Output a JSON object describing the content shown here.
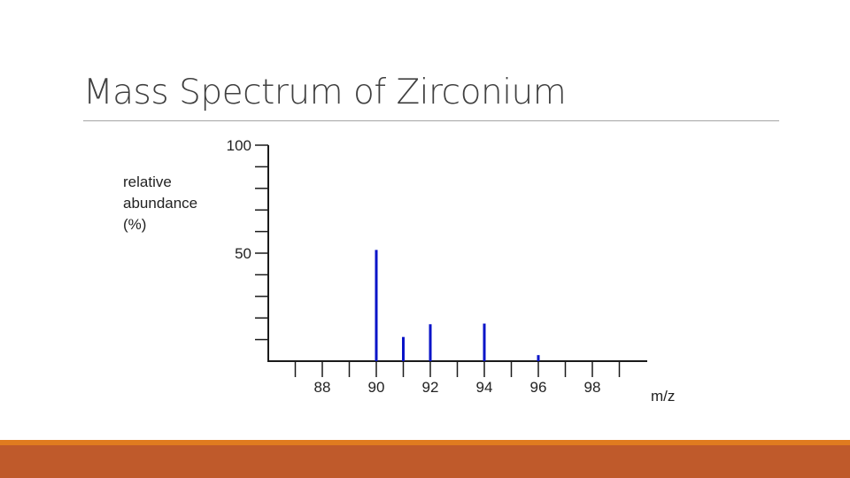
{
  "slide": {
    "title": "Mass Spectrum of Zirconium"
  },
  "colors": {
    "bar": "#0a14c8",
    "axis": "#1a1a1a",
    "band_top": "#e07b1f",
    "band_bottom": "#bf5a2b",
    "rule": "#a6a6a6"
  },
  "chart_data": {
    "type": "bar",
    "title": "",
    "ylabel_lines": [
      "relative",
      "abundance",
      "(%)"
    ],
    "xlabel": "m/z",
    "ylim": [
      0,
      100
    ],
    "xlim": [
      86,
      100
    ],
    "y_ticks_labeled": [
      {
        "value": 100,
        "label": "100"
      },
      {
        "value": 50,
        "label": "50"
      }
    ],
    "y_tick_step": 10,
    "x_ticks_labeled": [
      {
        "value": 88,
        "label": "88"
      },
      {
        "value": 90,
        "label": "90"
      },
      {
        "value": 92,
        "label": "92"
      },
      {
        "value": 94,
        "label": "94"
      },
      {
        "value": 96,
        "label": "96"
      },
      {
        "value": 98,
        "label": "98"
      }
    ],
    "x_tick_step": 1,
    "peaks": [
      {
        "mz": 90,
        "abundance": 51.5
      },
      {
        "mz": 91,
        "abundance": 11.2
      },
      {
        "mz": 92,
        "abundance": 17.1
      },
      {
        "mz": 94,
        "abundance": 17.4
      },
      {
        "mz": 96,
        "abundance": 2.8
      }
    ],
    "grid": false,
    "legend": "none"
  }
}
